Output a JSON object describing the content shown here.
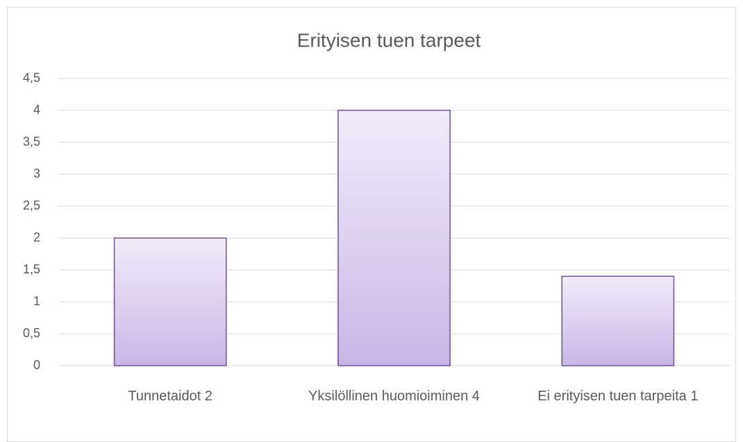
{
  "chart_data": {
    "type": "bar",
    "title": "Erityisen tuen tarpeet",
    "categories": [
      "Tunnetaidot 2",
      "Yksilöllinen huomioiminen 4",
      "Ei erityisen tuen tarpeita 1"
    ],
    "values": [
      2,
      4,
      1.4
    ],
    "color": "#c9b6e8",
    "ylim": [
      0,
      4.5
    ],
    "yticks": [
      0,
      {
        "value": 0.5,
        "label": "0,5"
      },
      1,
      {
        "value": 1.5,
        "label": "1,5"
      },
      2,
      {
        "value": 2.5,
        "label": "2,5"
      },
      3,
      {
        "value": 3.5,
        "label": "3,5"
      },
      4,
      {
        "value": 4.5,
        "label": "4,5"
      }
    ],
    "grid": true
  }
}
